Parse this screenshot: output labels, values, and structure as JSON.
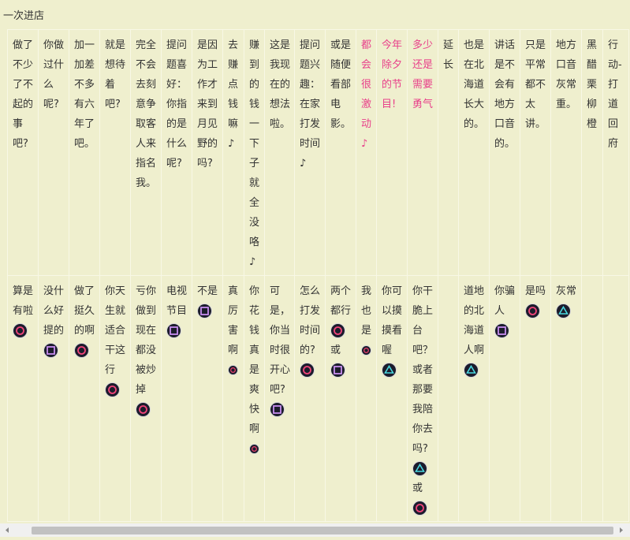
{
  "header": {
    "title": "一次进店"
  },
  "table": {
    "rows": [
      [
        "做了不少了不起的事吧?",
        "你做过什么呢?",
        "加一加差不多有六年了吧。",
        "就是想待着吧?",
        "完全不会去刻意争取客人来指名我。",
        "提问题喜好：你指的是什么呢?",
        "是因为工作才来到月见野的吗?",
        "去赚点钱嘛♪",
        "赚到的钱一下子就全没咯♪",
        "这是我现在的想法啦。",
        "提问题兴趣：在家打发时间♪",
        "或是随便看部电影。",
        {
          "text": "都会很激动♪",
          "color": "#e8408a"
        },
        {
          "text": "今年除夕的节目!",
          "color": "#e8408a"
        },
        {
          "text": "多少还是需要勇气",
          "color": "#e8408a"
        },
        "延长",
        "也是在北海道长大的。",
        "讲话是不会有地方口音的。",
        "只是平常都不太讲。",
        "地方口音灰常重。",
        "黑醋栗柳橙",
        "行动-打道回府"
      ],
      [
        [
          "算是有啦",
          {
            "icon": "circle"
          }
        ],
        [
          "没什么好提的",
          {
            "icon": "square"
          }
        ],
        [
          "做了挺久的啊",
          {
            "icon": "circle"
          }
        ],
        [
          "你天生就适合干这行",
          {
            "icon": "circle"
          }
        ],
        [
          "亏你做到现在都没被炒掉",
          {
            "icon": "circle"
          }
        ],
        [
          "电视节目",
          {
            "icon": "square"
          }
        ],
        [
          "不是",
          {
            "icon": "square"
          }
        ],
        [
          "真厉害啊",
          {
            "icon": "dot"
          }
        ],
        [
          "你花钱真是爽快啊",
          {
            "icon": "dot"
          }
        ],
        [
          "可是，你当时很开心吧?",
          {
            "icon": "square"
          }
        ],
        [
          "怎么打发时间的?",
          {
            "icon": "circle"
          }
        ],
        [
          "两个都行",
          {
            "icon": "circle"
          },
          "或",
          {
            "icon": "square"
          }
        ],
        [
          "我也是",
          {
            "icon": "dot"
          }
        ],
        [
          "你可以摸摸看喔",
          {
            "icon": "triangle"
          }
        ],
        [
          "你干脆上台吧？或者那要我陪你去吗?",
          {
            "icon": "triangle"
          },
          "或",
          {
            "icon": "circle"
          }
        ],
        [],
        [
          "道地的北海道人啊",
          {
            "icon": "triangle"
          }
        ],
        [
          "你骗人",
          {
            "icon": "square"
          }
        ],
        [
          "是吗",
          {
            "icon": "circle"
          }
        ],
        [
          "灰常",
          {
            "icon": "triangle"
          }
        ],
        [],
        []
      ]
    ]
  }
}
